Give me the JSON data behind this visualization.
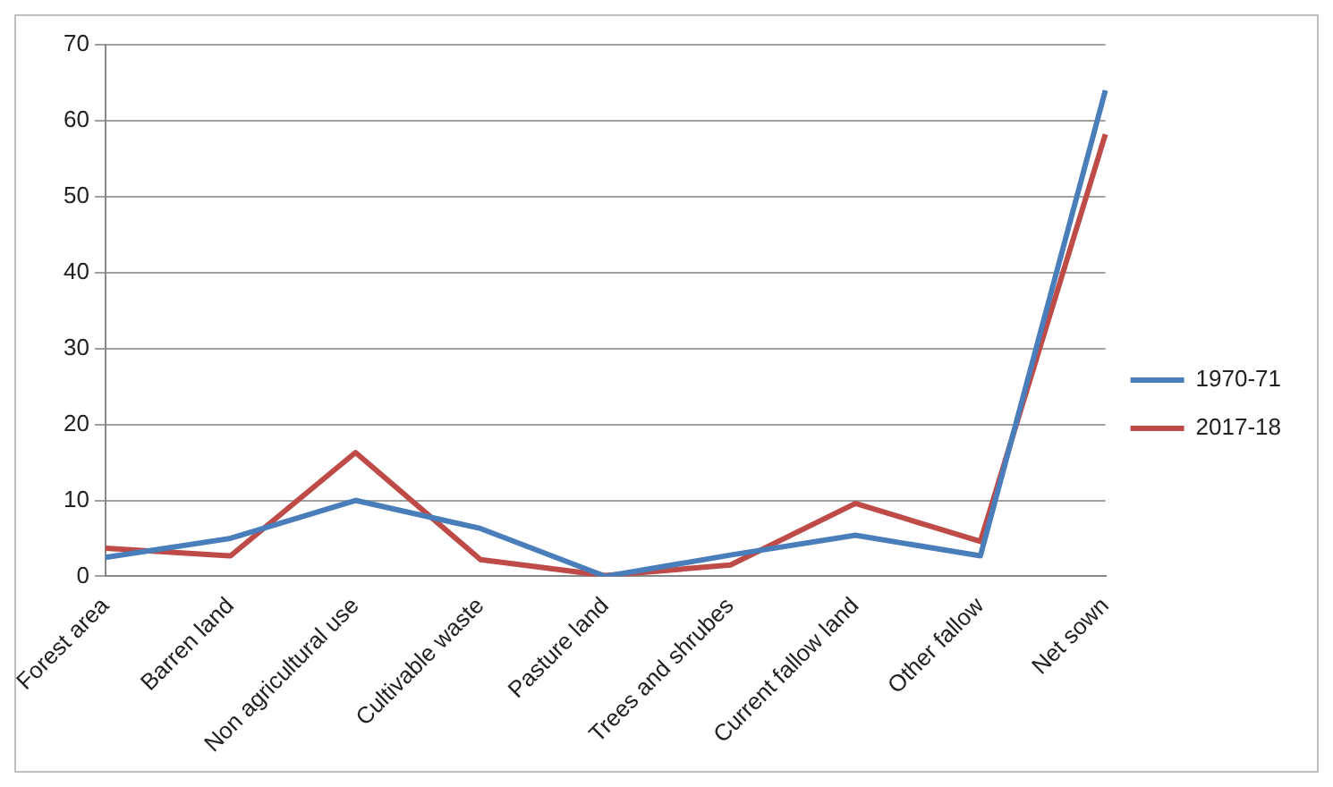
{
  "chart_data": {
    "type": "line",
    "categories": [
      "Forest area",
      "Barren land",
      "Non agricultural use",
      "Cultivable waste",
      "Pasture land",
      "Trees and shrubes",
      "Current fallow land",
      "Other fallow",
      "Net sown"
    ],
    "series": [
      {
        "name": "1970-71",
        "color": "#4a7ebb",
        "values": [
          2.5,
          5,
          10,
          6.3,
          0,
          2.8,
          5.4,
          2.7,
          64
        ]
      },
      {
        "name": "2017-18",
        "color": "#be4b48",
        "values": [
          3.7,
          2.7,
          16.3,
          2.2,
          0.1,
          1.5,
          9.6,
          4.6,
          58.2
        ]
      }
    ],
    "ylim": [
      0,
      70
    ],
    "yticks": [
      0,
      10,
      20,
      30,
      40,
      50,
      60,
      70
    ],
    "grid": "y",
    "legend": "right",
    "marker": "none",
    "line_style": "solid"
  }
}
